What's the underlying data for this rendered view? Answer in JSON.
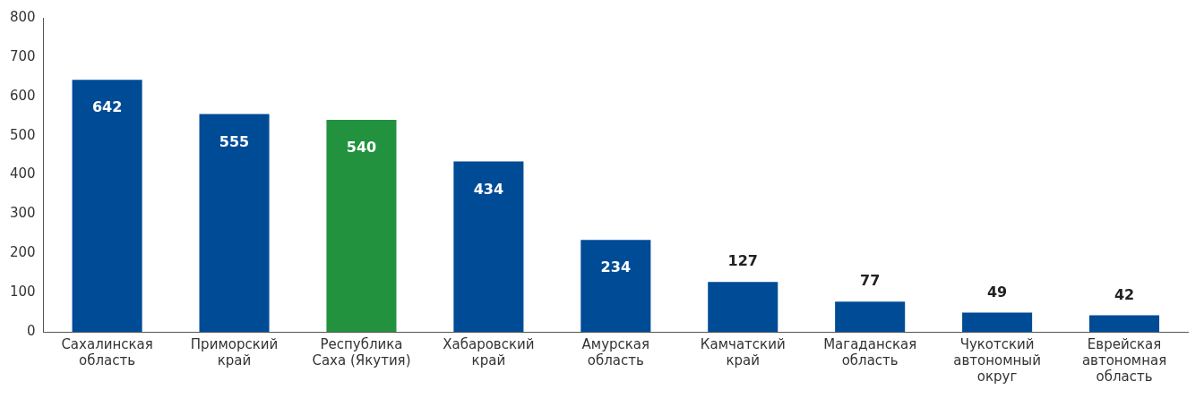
{
  "chart_data": {
    "type": "bar",
    "categories": [
      "Сахалинская область",
      "Приморский край",
      "Республика Саха (Якутия)",
      "Хабаровский край",
      "Амурская область",
      "Камчатский край",
      "Магаданская область",
      "Чукотский автономный округ",
      "Еврейская автономная область"
    ],
    "values": [
      642,
      555,
      540,
      434,
      234,
      127,
      77,
      49,
      42
    ],
    "colors": [
      "#004b96",
      "#004b96",
      "#22923f",
      "#004b96",
      "#004b96",
      "#004b96",
      "#004b96",
      "#004b96",
      "#004b96"
    ],
    "ylim": [
      0,
      800
    ],
    "yticks": [
      0,
      100,
      200,
      300,
      400,
      500,
      600,
      700,
      800
    ],
    "grid": false,
    "legend": false,
    "data_labels": true
  }
}
